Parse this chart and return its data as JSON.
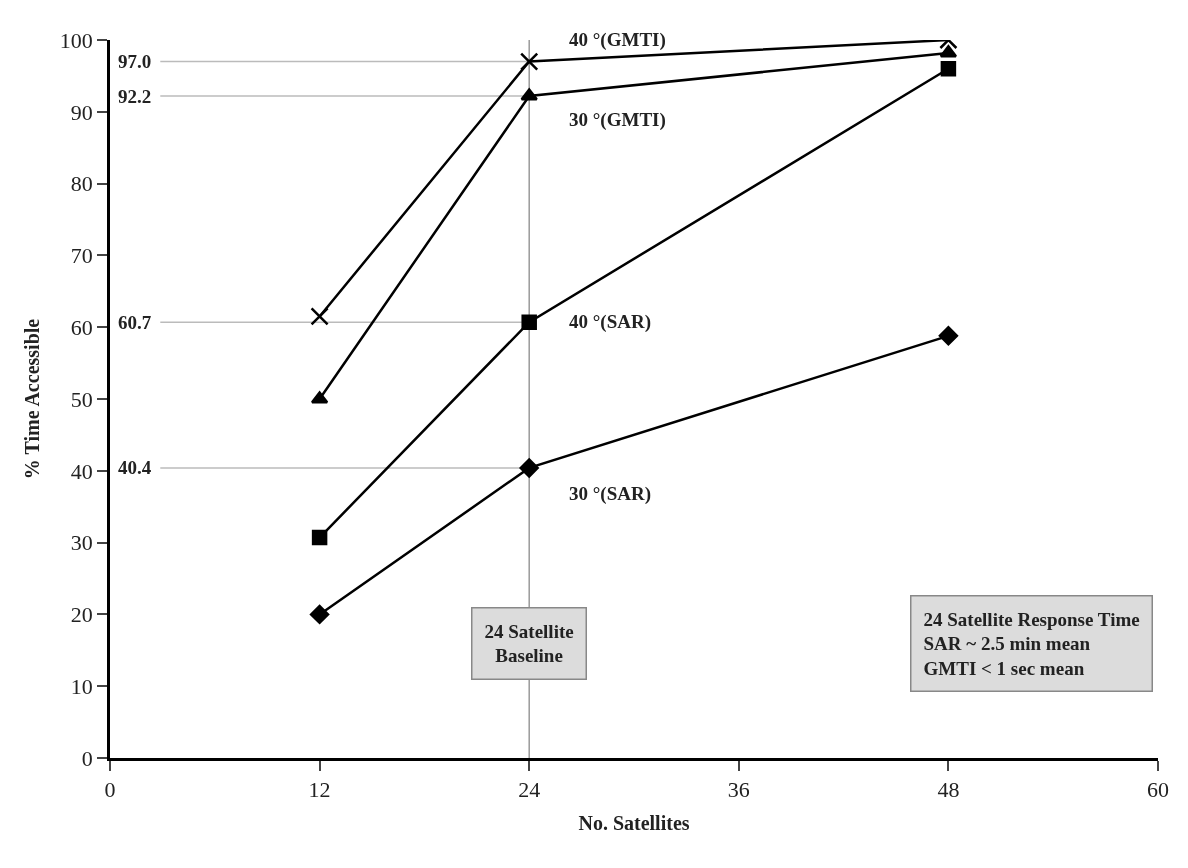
{
  "chart_data": {
    "type": "line",
    "xlabel": "No. Satellites",
    "ylabel": "% Time Accessible",
    "x": [
      12,
      24,
      48
    ],
    "series": [
      {
        "name": "40 °(GMTI)",
        "color": "#000000",
        "marker": "cross",
        "values": [
          61.5,
          97.0,
          100
        ]
      },
      {
        "name": "30 °(GMTI)",
        "color": "#000000",
        "marker": "triangle",
        "values": [
          50,
          92.2,
          98.2
        ]
      },
      {
        "name": "40 °(SAR)",
        "color": "#000000",
        "marker": "square",
        "values": [
          30.7,
          60.7,
          96
        ]
      },
      {
        "name": "30 °(SAR)",
        "color": "#000000",
        "marker": "diamond",
        "values": [
          20,
          40.4,
          58.8
        ]
      }
    ],
    "xlim": [
      0,
      60
    ],
    "xticks": [
      0,
      12,
      24,
      36,
      48,
      60
    ],
    "ylim": [
      0,
      100
    ],
    "yticks": [
      0,
      10,
      20,
      30,
      40,
      50,
      60,
      70,
      80,
      90,
      100
    ],
    "ref_lines": [
      {
        "axis": "x",
        "value": 24,
        "color": "#999999"
      },
      {
        "axis": "y",
        "value": 97.0,
        "label": "97.0",
        "color": "#bbbbbb"
      },
      {
        "axis": "y",
        "value": 92.2,
        "label": "92.2",
        "color": "#bbbbbb"
      },
      {
        "axis": "y",
        "value": 60.7,
        "label": "60.7",
        "color": "#bbbbbb"
      },
      {
        "axis": "y",
        "value": 40.4,
        "label": "40.4",
        "color": "#bbbbbb"
      }
    ],
    "annotations": [
      "24 Satellite\nBaseline",
      "24 Satellite Response Time\nSAR ~ 2.5 min mean\nGMTI < 1 sec mean"
    ],
    "grid": false,
    "legend": false
  }
}
